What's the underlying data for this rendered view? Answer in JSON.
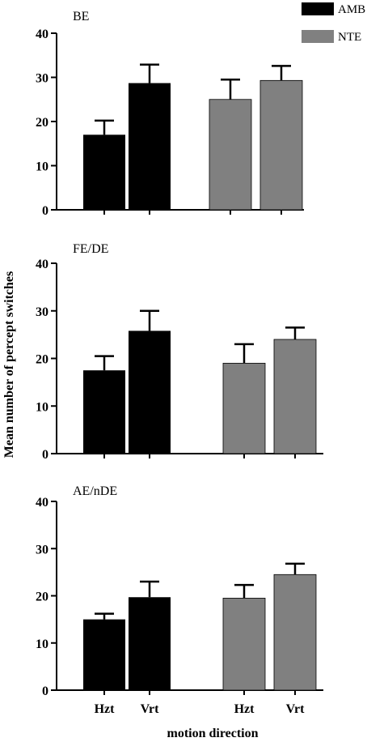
{
  "figure": {
    "ylabel": "Mean number of percept switches",
    "xlabel": "motion direction"
  },
  "legend": {
    "entries": [
      {
        "label": "AMB",
        "color": "#000000"
      },
      {
        "label": "NTE",
        "color": "#808080"
      }
    ]
  },
  "chart_data": [
    {
      "type": "bar",
      "title": "BE",
      "categories": [
        "Hzt",
        "Vrt"
      ],
      "ylim": [
        0,
        40
      ],
      "yticks": [
        0,
        10,
        20,
        30,
        40
      ],
      "series": [
        {
          "name": "AMB",
          "color": "#000000",
          "values": [
            17,
            28.7
          ],
          "errors": [
            3.2,
            4.2
          ]
        },
        {
          "name": "NTE",
          "color": "#808080",
          "values": [
            25,
            29.3
          ],
          "errors": [
            4.5,
            3.3
          ]
        }
      ]
    },
    {
      "type": "bar",
      "title": "FE/DE",
      "categories": [
        "Hzt",
        "Vrt"
      ],
      "ylim": [
        0,
        40
      ],
      "yticks": [
        0,
        10,
        20,
        30,
        40
      ],
      "series": [
        {
          "name": "AMB",
          "color": "#000000",
          "values": [
            17.5,
            25.8
          ],
          "errors": [
            3,
            4.2
          ]
        },
        {
          "name": "NTE",
          "color": "#808080",
          "values": [
            19,
            24
          ],
          "errors": [
            4,
            2.5
          ]
        }
      ]
    },
    {
      "type": "bar",
      "title": "AE/nDE",
      "categories": [
        "Hzt",
        "Vrt"
      ],
      "ylim": [
        0,
        40
      ],
      "yticks": [
        0,
        10,
        20,
        30,
        40
      ],
      "series": [
        {
          "name": "AMB",
          "color": "#000000",
          "values": [
            15,
            19.7
          ],
          "errors": [
            1.2,
            3.3
          ]
        },
        {
          "name": "NTE",
          "color": "#808080",
          "values": [
            19.5,
            24.5
          ],
          "errors": [
            2.8,
            2.3
          ]
        }
      ]
    }
  ]
}
